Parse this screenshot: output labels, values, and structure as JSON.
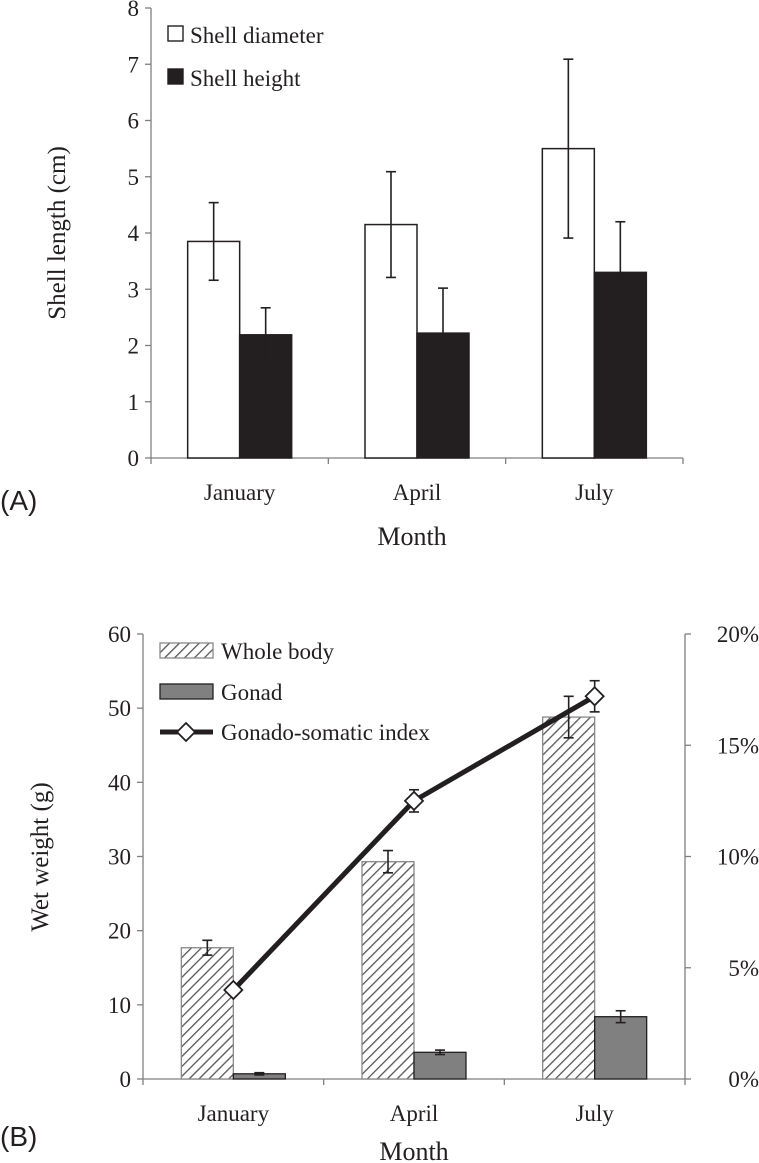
{
  "chart_data": [
    {
      "panel": "(A)",
      "type": "bar",
      "categories": [
        "January",
        "April",
        "July"
      ],
      "xlabel": "Month",
      "ylabel": "Shell length (cm)",
      "ylim": [
        0,
        8
      ],
      "yticks": [
        0,
        1,
        2,
        3,
        4,
        5,
        6,
        7,
        8
      ],
      "legend_position": "top-left",
      "grid": false,
      "series": [
        {
          "name": "Shell diameter",
          "style": "hollow",
          "values": [
            3.85,
            4.15,
            5.5
          ],
          "errors": [
            0.69,
            0.94,
            1.59
          ]
        },
        {
          "name": "Shell height",
          "style": "solid",
          "color": "#231f20",
          "values": [
            2.19,
            2.22,
            3.3
          ],
          "errors": [
            0.48,
            0.8,
            0.9
          ]
        }
      ]
    },
    {
      "panel": "(B)",
      "type": "bar",
      "categories": [
        "January",
        "April",
        "July"
      ],
      "xlabel": "Month",
      "ylabel": "Wet weight (g)",
      "ylim": [
        0,
        60
      ],
      "yticks": [
        0,
        10,
        20,
        30,
        40,
        50,
        60
      ],
      "y2lim": [
        0,
        20
      ],
      "y2ticks": [
        "0%",
        "5%",
        "10%",
        "15%",
        "20%"
      ],
      "y2values": [
        0,
        5,
        10,
        15,
        20
      ],
      "legend_position": "top-left",
      "grid": false,
      "series": [
        {
          "name": "Whole body",
          "style": "hatched",
          "values": [
            17.7,
            29.3,
            48.8
          ],
          "errors": [
            1.0,
            1.5,
            2.8
          ]
        },
        {
          "name": "Gonad",
          "style": "solid",
          "color": "#808080",
          "values": [
            0.7,
            3.6,
            8.4
          ],
          "errors": [
            0.15,
            0.3,
            0.8
          ]
        },
        {
          "name": "Gonado-somatic index",
          "type": "line",
          "axis": "right",
          "marker": "diamond",
          "color": "#231f20",
          "values": [
            4.0,
            12.5,
            17.2
          ],
          "errors": [
            0.2,
            0.5,
            0.7
          ]
        }
      ]
    }
  ]
}
